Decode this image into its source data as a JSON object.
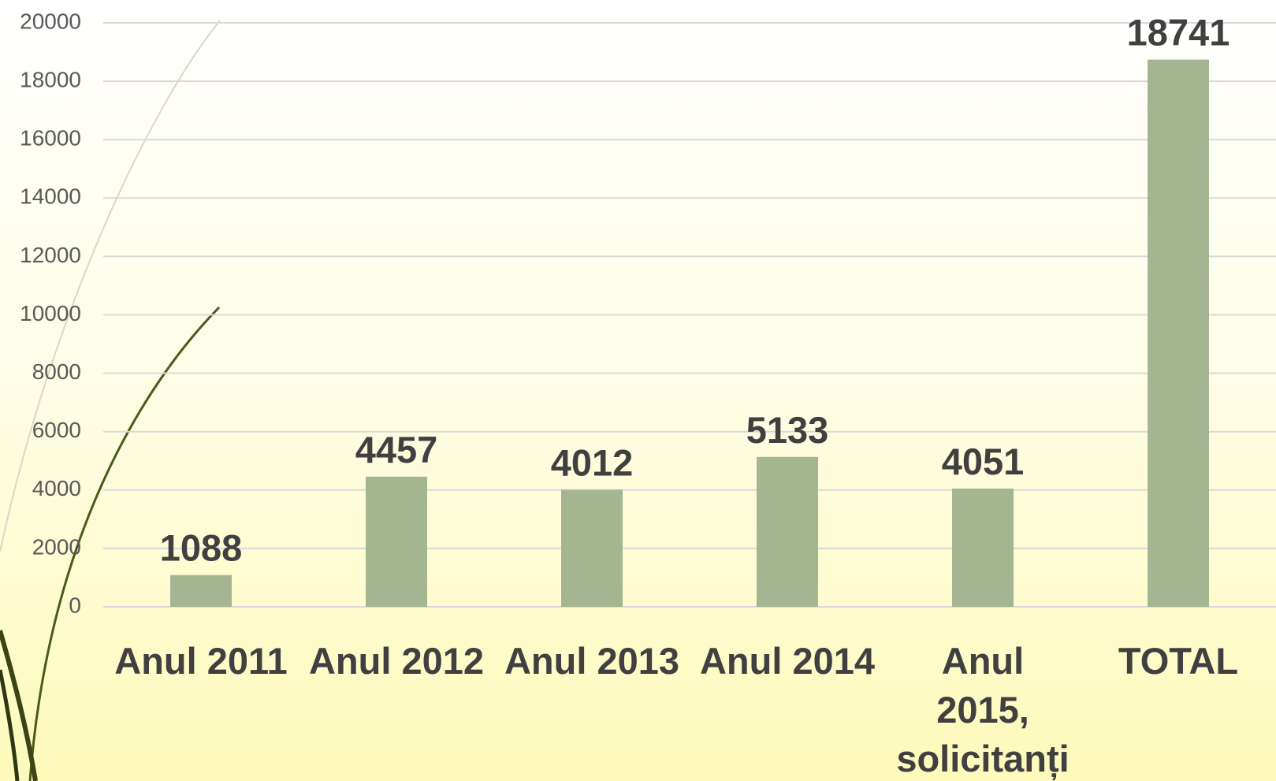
{
  "chart_data": {
    "type": "bar",
    "categories": [
      "Anul 2011",
      "Anul 2012",
      "Anul 2013",
      "Anul 2014",
      "Anul 2015, solicitanți",
      "TOTAL"
    ],
    "values": [
      1088,
      4457,
      4012,
      5133,
      4051,
      18741
    ],
    "color": "#a5b592",
    "ylim": [
      0,
      20000
    ],
    "yticks": [
      0,
      2000,
      4000,
      6000,
      8000,
      10000,
      12000,
      14000,
      16000,
      18000,
      20000
    ],
    "grid": true
  }
}
